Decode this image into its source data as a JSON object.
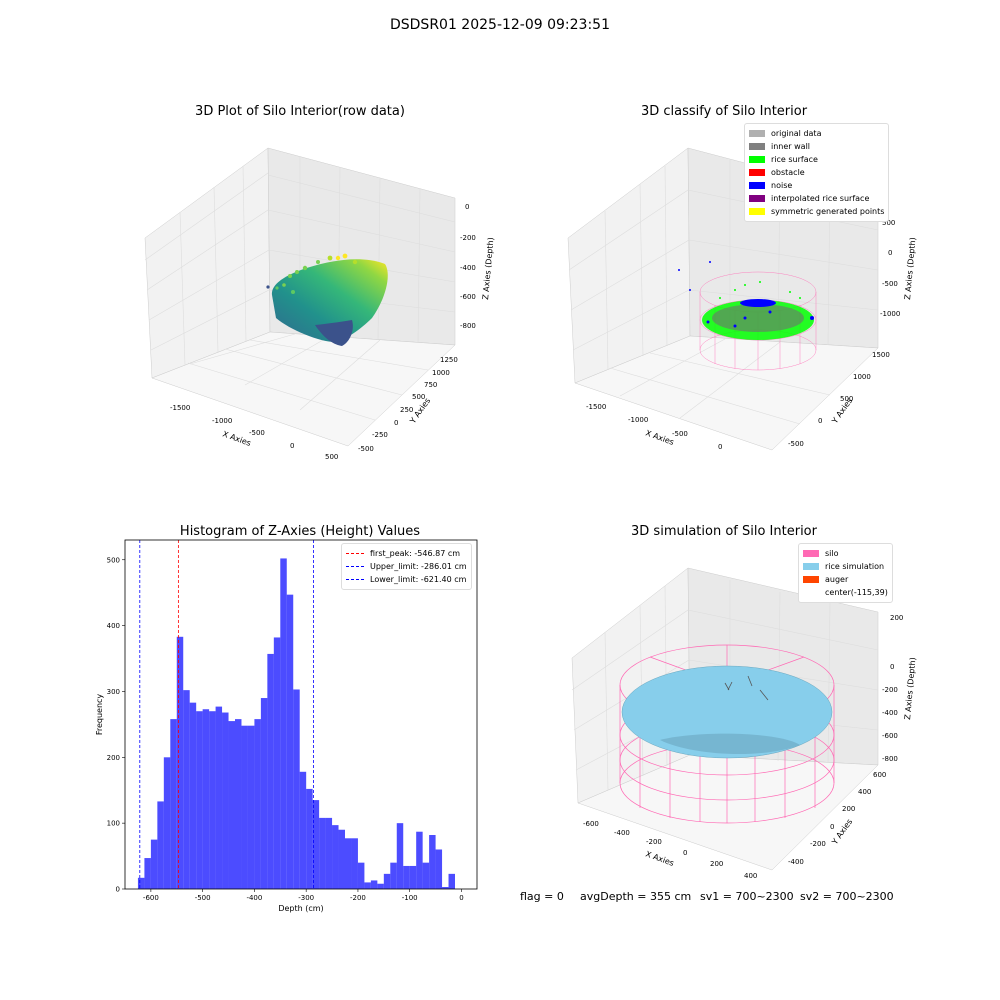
{
  "figure": {
    "suptitle": "DSDSR01 2025-12-09 09:23:51",
    "status": {
      "flag": "flag = 0",
      "avg_depth": "avgDepth = 355 cm",
      "sv1": "sv1 = 700~2300",
      "sv2": "sv2 = 700~2300"
    }
  },
  "panel_raw": {
    "title": "3D Plot of Silo Interior(row data)",
    "xlabel": "X Axies",
    "ylabel": "Y Axies",
    "zlabel": "Z Axies (Depth)",
    "xticks": [
      "-1500",
      "-1000",
      "-500",
      "0",
      "500"
    ],
    "yticks": [
      "-500",
      "-250",
      "0",
      "250",
      "500",
      "750",
      "1000",
      "1250"
    ],
    "zticks": [
      "0",
      "-200",
      "-400",
      "-600",
      "-800"
    ],
    "colormap": "viridis"
  },
  "panel_classify": {
    "title": "3D classify of Silo Interior",
    "xlabel": "X Axies",
    "ylabel": "Y Axies",
    "zlabel": "Z Axies (Depth)",
    "xticks": [
      "-1500",
      "-1000",
      "-500",
      "0"
    ],
    "yticks": [
      "-500",
      "0",
      "500",
      "1000",
      "1500"
    ],
    "zticks": [
      "500",
      "0",
      "-500",
      "-1000"
    ],
    "legend": [
      {
        "label": "original data",
        "color": "#b0b0b0"
      },
      {
        "label": "inner wall",
        "color": "#808080"
      },
      {
        "label": "rice surface",
        "color": "#00ff00"
      },
      {
        "label": "obstacle",
        "color": "#ff0000"
      },
      {
        "label": "noise",
        "color": "#0000ff"
      },
      {
        "label": "interpolated rice surface",
        "color": "#800080"
      },
      {
        "label": "symmetric generated points",
        "color": "#ffff00"
      }
    ]
  },
  "panel_sim": {
    "title": "3D simulation of Silo Interior",
    "xlabel": "X Axies",
    "ylabel": "Y Axies",
    "zlabel": "Z Axies (Depth)",
    "xticks": [
      "-600",
      "-400",
      "-200",
      "0",
      "200",
      "400"
    ],
    "yticks": [
      "-400",
      "-200",
      "0",
      "200",
      "400",
      "600"
    ],
    "zticks": [
      "200",
      "0",
      "-200",
      "-400",
      "-600",
      "-800"
    ],
    "legend": [
      {
        "label": "silo",
        "color": "#ff69b4"
      },
      {
        "label": "rice simulation",
        "color": "#87ceeb"
      },
      {
        "label": "auger",
        "color": "#ff4500"
      },
      {
        "label": "center(-115,39)",
        "color": ""
      }
    ]
  },
  "chart_data": {
    "type": "bar",
    "title": "Histogram of Z-Axies (Height) Values",
    "xlabel": "Depth (cm)",
    "ylabel": "Frequency",
    "xlim": [
      -650,
      30
    ],
    "ylim": [
      0,
      530
    ],
    "xticks": [
      -600,
      -500,
      -400,
      -300,
      -200,
      -100,
      0
    ],
    "yticks": [
      0,
      100,
      200,
      300,
      400,
      500
    ],
    "bin_start": -625,
    "bin_width": 12.5,
    "values": [
      17,
      47,
      75,
      133,
      200,
      258,
      383,
      302,
      283,
      270,
      273,
      270,
      277,
      268,
      255,
      258,
      248,
      248,
      258,
      290,
      357,
      382,
      502,
      447,
      303,
      178,
      152,
      135,
      108,
      108,
      97,
      90,
      77,
      77,
      40,
      10,
      13,
      8,
      23,
      40,
      100,
      35,
      35,
      87,
      40,
      82,
      60,
      3,
      23
    ],
    "color": "#0000ff",
    "lines": [
      {
        "label": "first_peak: -546.87 cm",
        "x": -546.87,
        "color": "#ff0000"
      },
      {
        "label": "Upper_limit: -286.01 cm",
        "x": -286.01,
        "color": "#0000ff"
      },
      {
        "label": "Lower_limit: -621.40 cm",
        "x": -621.4,
        "color": "#0000ff"
      }
    ],
    "legend_position": "top-right"
  }
}
